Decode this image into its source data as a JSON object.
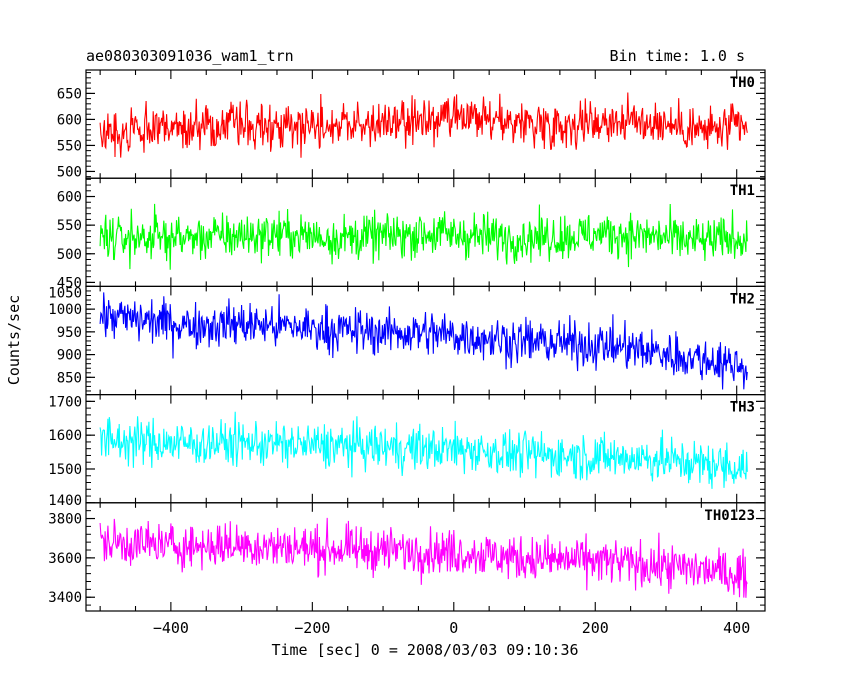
{
  "chart_data": {
    "type": "line",
    "title": "ae080303091036_wam1_trn",
    "subtitle": "Bin time: 1.0 s",
    "xlabel": "Time [sec] 0 = 2008/03/03 09:10:36",
    "ylabel": "Counts/sec",
    "xlim": [
      -520,
      440
    ],
    "x_ticks": [
      -400,
      -200,
      0,
      200,
      400
    ],
    "x_range": [
      -500,
      415
    ],
    "grid": false,
    "panels": [
      {
        "name": "TH0",
        "color": "#ff0000",
        "ylim": [
          487,
          695
        ],
        "y_ticks": [
          500,
          550,
          600,
          650
        ],
        "values": [
          572,
          580,
          585,
          588,
          590,
          592,
          588,
          596,
          600,
          595,
          590,
          598,
          595,
          578,
          585
        ]
      },
      {
        "name": "TH1",
        "color": "#00ff00",
        "ylim": [
          443,
          632
        ],
        "y_ticks": [
          450,
          500,
          550,
          600
        ],
        "values": [
          525,
          530,
          528,
          532,
          534,
          528,
          530,
          536,
          532,
          528,
          530,
          535,
          530,
          522,
          528
        ]
      },
      {
        "name": "TH2",
        "color": "#0000ff",
        "ylim": [
          812,
          1050
        ],
        "y_ticks": [
          850,
          900,
          950,
          1000,
          1050
        ],
        "values": [
          985,
          975,
          965,
          968,
          962,
          955,
          950,
          948,
          940,
          930,
          925,
          920,
          905,
          890,
          875
        ]
      },
      {
        "name": "TH3",
        "color": "#00ffff",
        "ylim": [
          1400,
          1720
        ],
        "y_ticks": [
          1400,
          1500,
          1600,
          1700
        ],
        "values": [
          1585,
          1580,
          1575,
          1578,
          1572,
          1568,
          1565,
          1560,
          1558,
          1545,
          1540,
          1535,
          1530,
          1515,
          1505
        ]
      },
      {
        "name": "TH0123",
        "color": "#ff00ff",
        "ylim": [
          3330,
          3880
        ],
        "y_ticks": [
          3400,
          3600,
          3800
        ],
        "values": [
          3680,
          3670,
          3660,
          3665,
          3655,
          3645,
          3640,
          3635,
          3625,
          3600,
          3590,
          3580,
          3560,
          3540,
          3510
        ]
      }
    ]
  }
}
